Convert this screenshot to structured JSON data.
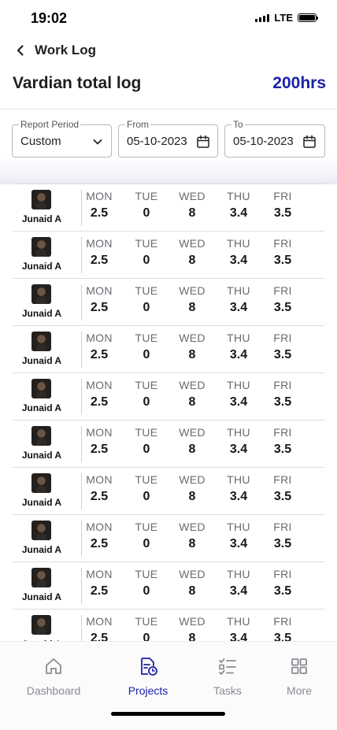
{
  "status_bar": {
    "time": "19:02",
    "network": "LTE"
  },
  "nav": {
    "title": "Work Log"
  },
  "header": {
    "title": "Vardian total log",
    "total": "200hrs",
    "accent_color": "#1c22a8"
  },
  "filters": {
    "report_period": {
      "label": "Report Period",
      "value": "Custom"
    },
    "from": {
      "label": "From",
      "value": "05-10-2023"
    },
    "to": {
      "label": "To",
      "value": "05-10-2023"
    }
  },
  "days": [
    "MON",
    "TUE",
    "WED",
    "THU",
    "FRI"
  ],
  "rows": [
    {
      "name": "Junaid A",
      "values": [
        "2.5",
        "0",
        "8",
        "3.4",
        "3.5"
      ]
    },
    {
      "name": "Junaid A",
      "values": [
        "2.5",
        "0",
        "8",
        "3.4",
        "3.5"
      ]
    },
    {
      "name": "Junaid A",
      "values": [
        "2.5",
        "0",
        "8",
        "3.4",
        "3.5"
      ]
    },
    {
      "name": "Junaid A",
      "values": [
        "2.5",
        "0",
        "8",
        "3.4",
        "3.5"
      ]
    },
    {
      "name": "Junaid A",
      "values": [
        "2.5",
        "0",
        "8",
        "3.4",
        "3.5"
      ]
    },
    {
      "name": "Junaid A",
      "values": [
        "2.5",
        "0",
        "8",
        "3.4",
        "3.5"
      ]
    },
    {
      "name": "Junaid A",
      "values": [
        "2.5",
        "0",
        "8",
        "3.4",
        "3.5"
      ]
    },
    {
      "name": "Junaid A",
      "values": [
        "2.5",
        "0",
        "8",
        "3.4",
        "3.5"
      ]
    },
    {
      "name": "Junaid A",
      "values": [
        "2.5",
        "0",
        "8",
        "3.4",
        "3.5"
      ]
    },
    {
      "name": "Junaid A",
      "values": [
        "2.5",
        "0",
        "8",
        "3.4",
        "3.5"
      ]
    }
  ],
  "tabs": [
    {
      "label": "Dashboard",
      "icon": "home-icon",
      "active": false
    },
    {
      "label": "Projects",
      "icon": "projects-icon",
      "active": true
    },
    {
      "label": "Tasks",
      "icon": "tasks-icon",
      "active": false
    },
    {
      "label": "More",
      "icon": "grid-icon",
      "active": false
    }
  ]
}
